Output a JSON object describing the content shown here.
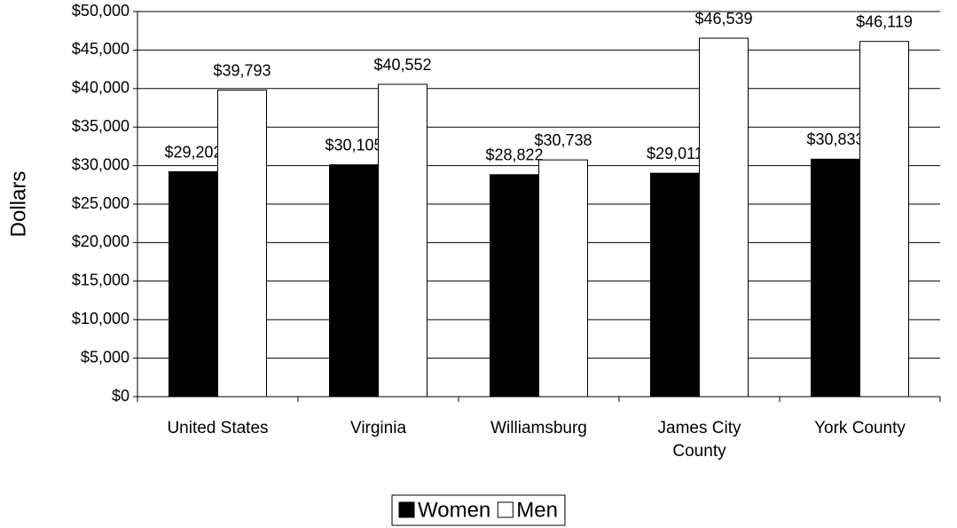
{
  "chart_data": {
    "type": "bar",
    "y_label": "Dollars",
    "categories": [
      "United States",
      "Virginia",
      "Williamsburg",
      "James City County",
      "York County"
    ],
    "series": [
      {
        "name": "Women",
        "color": "#000000",
        "values": [
          29202,
          30105,
          28822,
          29011,
          30833
        ],
        "value_labels": [
          "$29,202",
          "$30,105",
          "$28,822",
          "$29,011",
          "$30,833"
        ]
      },
      {
        "name": "Men",
        "color": "#ffffff",
        "values": [
          39793,
          40552,
          30738,
          46539,
          46119
        ],
        "value_labels": [
          "$39,793",
          "$40,552",
          "$30,738",
          "$46,539",
          "$46,119"
        ]
      }
    ],
    "ylim": [
      0,
      50000
    ],
    "yticks": [
      {
        "value": 0,
        "label": "$0"
      },
      {
        "value": 5000,
        "label": "$5,000"
      },
      {
        "value": 10000,
        "label": "$10,000"
      },
      {
        "value": 15000,
        "label": "$15,000"
      },
      {
        "value": 20000,
        "label": "$20,000"
      },
      {
        "value": 25000,
        "label": "$25,000"
      },
      {
        "value": 30000,
        "label": "$30,000"
      },
      {
        "value": 35000,
        "label": "$35,000"
      },
      {
        "value": 40000,
        "label": "$40,000"
      },
      {
        "value": 45000,
        "label": "$45,000"
      },
      {
        "value": 50000,
        "label": "$50,000"
      }
    ],
    "grid": true,
    "legend": "bottom"
  }
}
